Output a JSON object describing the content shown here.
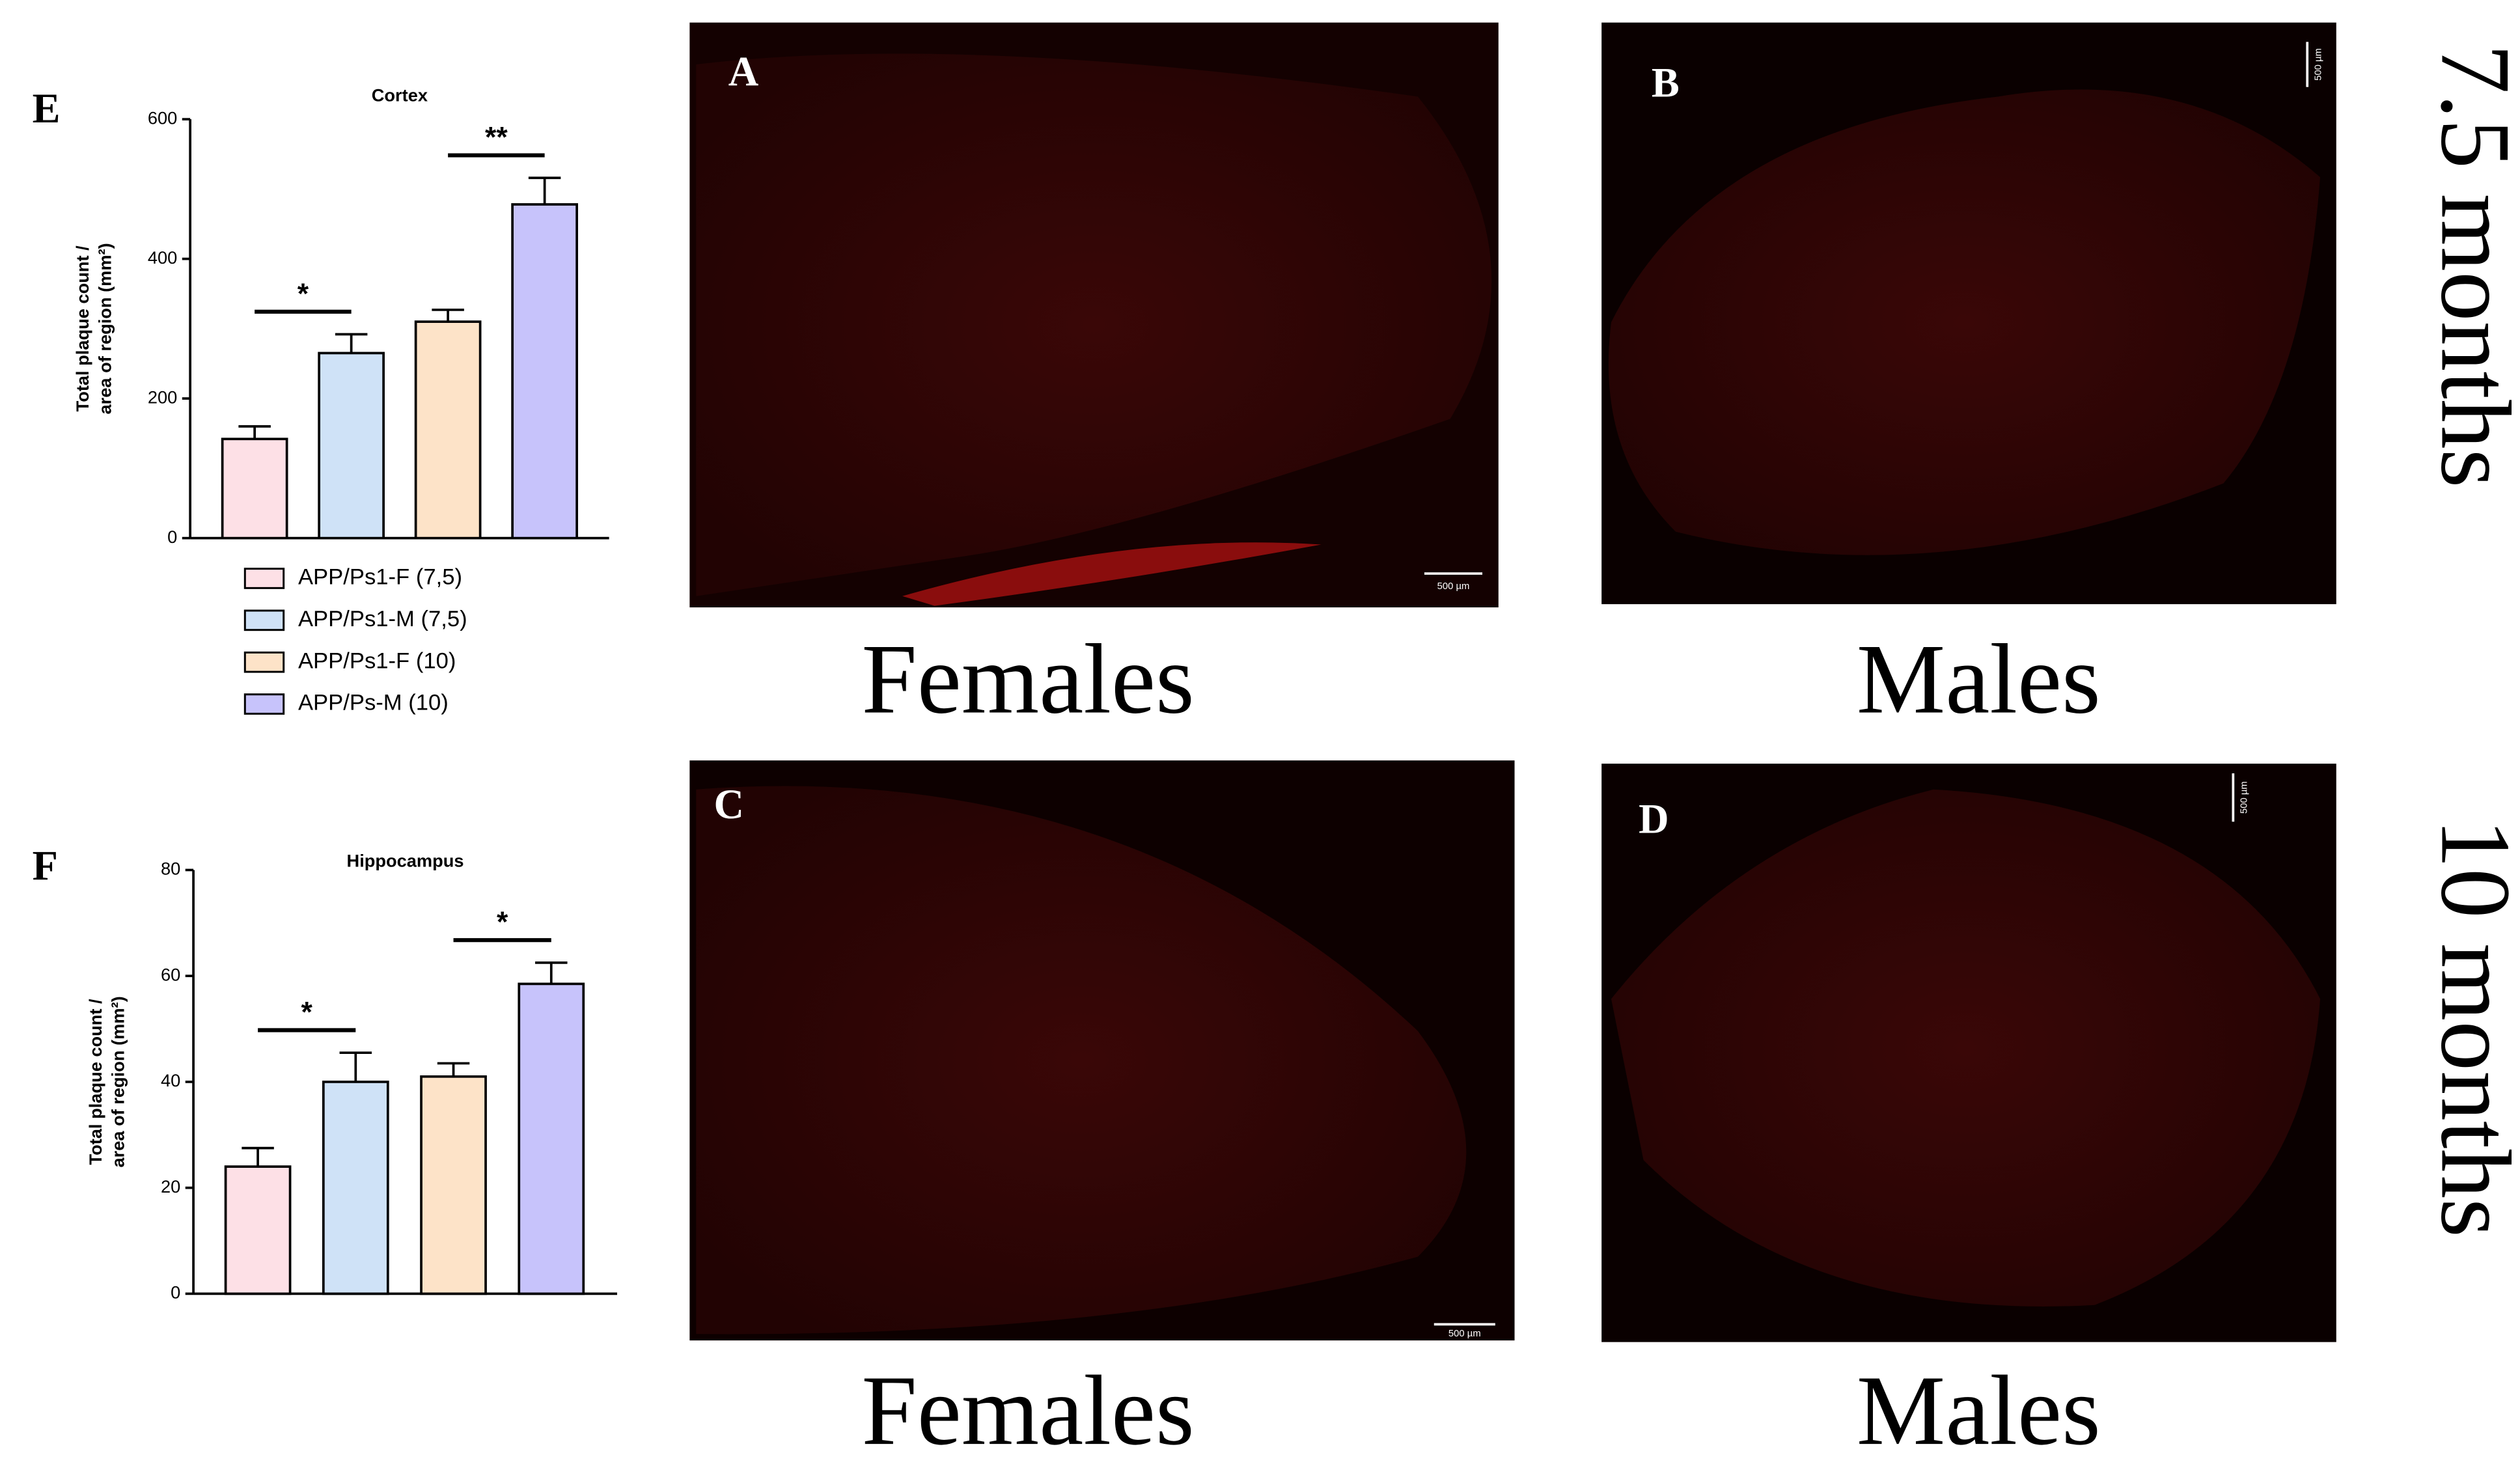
{
  "chart_data": [
    {
      "type": "bar",
      "panel": "E",
      "title": "Cortex",
      "ylabel": [
        "Total plaque count /",
        "area of region (mm²)"
      ],
      "ylim": [
        0,
        600
      ],
      "yticks": [
        0,
        200,
        400,
        600
      ],
      "series": [
        {
          "name": "APP/Ps1-F (7,5)",
          "color": "#fde0e6",
          "values": [
            142
          ],
          "errors": [
            18
          ]
        },
        {
          "name": "APP/Ps1-M (7,5)",
          "color": "#cfe2f7",
          "values": [
            265
          ],
          "errors": [
            27
          ]
        },
        {
          "name": "APP/Ps1-F (10)",
          "color": "#fde3c8",
          "values": [
            310
          ],
          "errors": [
            17
          ]
        },
        {
          "name": "APP/Ps-M (10)",
          "color": "#c7c3fb",
          "values": [
            478
          ],
          "errors": [
            38
          ]
        }
      ],
      "annotations": [
        {
          "text": "*",
          "between": [
            "APP/Ps1-F (7,5)",
            "APP/Ps1-M (7,5)"
          ]
        },
        {
          "text": "**",
          "between": [
            "APP/Ps1-F (10)",
            "APP/Ps-M (10)"
          ]
        }
      ]
    },
    {
      "type": "bar",
      "panel": "F",
      "title": "Hippocampus",
      "ylabel": [
        "Total plaque count /",
        "area of region (mm²)"
      ],
      "ylim": [
        0,
        80
      ],
      "yticks": [
        0,
        20,
        40,
        60,
        80
      ],
      "series": [
        {
          "color": "#fde0e6",
          "values": [
            24
          ],
          "errors": [
            3.5
          ]
        },
        {
          "color": "#cfe2f7",
          "values": [
            40
          ],
          "errors": [
            5.5
          ]
        },
        {
          "color": "#fde3c8",
          "values": [
            41
          ],
          "errors": [
            2.5
          ]
        },
        {
          "color": "#c7c3fb",
          "values": [
            58.5
          ],
          "errors": [
            4
          ]
        }
      ],
      "annotations": [
        {
          "text": "*",
          "between": [
            "APP/Ps1-F (7,5)",
            "APP/Ps1-M (7,5)"
          ]
        },
        {
          "text": "*",
          "between": [
            "APP/Ps1-F (10)",
            "APP/Ps-M (10)"
          ]
        }
      ]
    }
  ],
  "panels": [
    {
      "letter": "A",
      "caption": "Females",
      "scale_bar": "500 µm"
    },
    {
      "letter": "B",
      "caption": "Males",
      "scale_bar": "500 µm"
    },
    {
      "letter": "C",
      "caption": "Females",
      "scale_bar": "500 µm"
    },
    {
      "letter": "D",
      "caption": "Males",
      "scale_bar": "500 µm"
    }
  ],
  "row_labels": [
    "7.5 months",
    "10 months"
  ]
}
